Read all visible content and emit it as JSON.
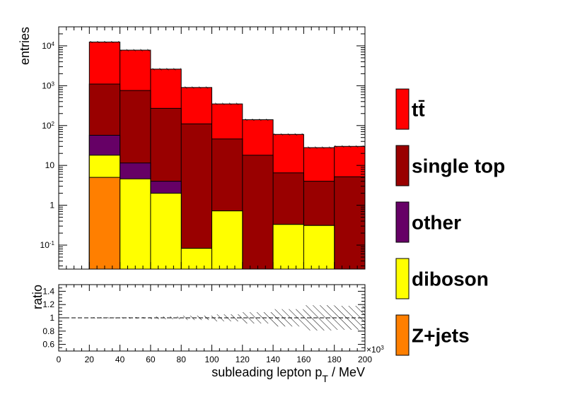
{
  "chart_data": [
    {
      "type": "bar",
      "subtype": "stacked-histogram",
      "ylabel": "entries",
      "yscale": "log",
      "ylim": [
        0.025,
        30000
      ],
      "xlim": [
        0,
        200
      ],
      "bin_edges": [
        0,
        20,
        40,
        60,
        80,
        100,
        120,
        140,
        160,
        180,
        200
      ],
      "ytick_labels": [
        "10^{-1}",
        "1",
        "10",
        "10^{2}",
        "10^{3}",
        "10^{4}"
      ],
      "series_cumulative": [
        {
          "name": "Z+jets",
          "color": "#ff7f00",
          "values": [
            0,
            5,
            0,
            0,
            0,
            0,
            0,
            0,
            0,
            0
          ]
        },
        {
          "name": "diboson",
          "color": "#ffff00",
          "values": [
            0,
            18,
            4.6,
            2.0,
            0.083,
            0.72,
            0,
            0.33,
            0.31,
            0
          ]
        },
        {
          "name": "other",
          "color": "#660066",
          "values": [
            0,
            57,
            11.5,
            4.0,
            0.083,
            0.72,
            0,
            0.33,
            0.31,
            0
          ]
        },
        {
          "name": "single top",
          "color": "#990000",
          "values": [
            0,
            1100,
            760,
            270,
            110,
            46,
            18,
            6.5,
            4.0,
            5.2
          ]
        },
        {
          "name": "tt̄",
          "color": "#ff0000",
          "values": [
            0,
            12500,
            7800,
            2600,
            900,
            350,
            140,
            60,
            28,
            30
          ]
        }
      ],
      "legend": [
        "tt̄",
        "single top",
        "other",
        "diboson",
        "Z+jets"
      ],
      "legend_position": "right"
    },
    {
      "type": "line",
      "ylabel": "ratio",
      "xlabel": "subleading lepton p_{T} / MeV",
      "x_multiplier": "×10^{3}",
      "xlim": [
        0,
        200
      ],
      "ylim": [
        0.5,
        1.5
      ],
      "xtick_labels": [
        "0",
        "20",
        "40",
        "60",
        "80",
        "100",
        "120",
        "140",
        "160",
        "180",
        "200"
      ],
      "ytick_labels": [
        "0.6",
        "0.8",
        "1",
        "1.2",
        "1.4"
      ],
      "reference_line": 1,
      "uncertainty_band": {
        "bin_centers": [
          30,
          50,
          70,
          90,
          110,
          130,
          150,
          170,
          190
        ],
        "half_width": [
          0.009,
          0.011,
          0.02,
          0.033,
          0.053,
          0.085,
          0.13,
          0.19,
          0.18
        ]
      }
    }
  ]
}
